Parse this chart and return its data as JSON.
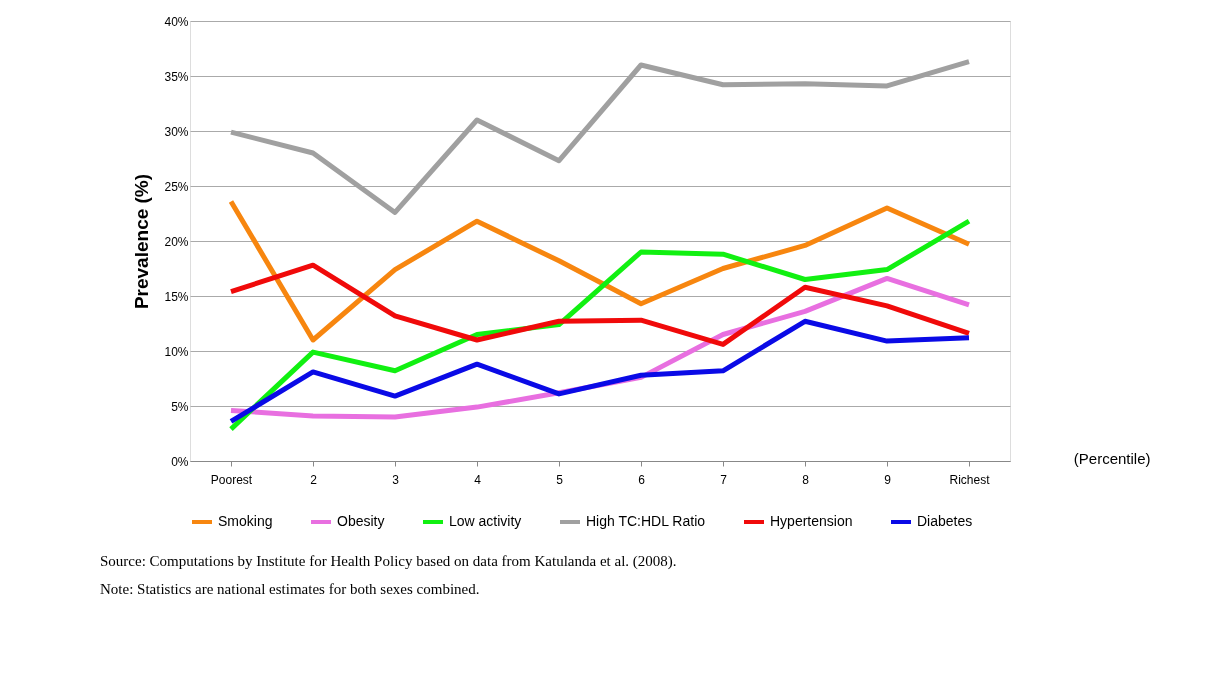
{
  "chart_data": {
    "type": "line",
    "ylabel": "Prevalence (%)",
    "xlabel": "(Percentile)",
    "categories": [
      "Poorest",
      "2",
      "3",
      "4",
      "5",
      "6",
      "7",
      "8",
      "9",
      "Richest"
    ],
    "series": [
      {
        "name": "Smoking",
        "color": "#f7860f",
        "values": [
          23.6,
          11.0,
          17.4,
          21.8,
          18.2,
          14.3,
          17.5,
          19.6,
          23.0,
          19.7
        ]
      },
      {
        "name": "Obesity",
        "color": "#e86fe0",
        "values": [
          4.6,
          4.1,
          4.0,
          4.9,
          6.2,
          7.6,
          11.5,
          13.6,
          16.6,
          14.2
        ]
      },
      {
        "name": "Low activity",
        "color": "#11f011",
        "values": [
          2.9,
          9.9,
          8.2,
          11.5,
          12.4,
          19.0,
          18.8,
          16.5,
          17.4,
          21.8
        ]
      },
      {
        "name": "High TC:HDL Ratio",
        "color": "#a0a0a0",
        "values": [
          29.9,
          28.0,
          22.6,
          31.0,
          27.3,
          36.0,
          34.2,
          34.3,
          34.1,
          36.3
        ]
      },
      {
        "name": "Hypertension",
        "color": "#f00a0a",
        "values": [
          15.4,
          17.8,
          13.2,
          11.0,
          12.7,
          12.8,
          10.6,
          15.8,
          14.1,
          11.6
        ]
      },
      {
        "name": "Diabetes",
        "color": "#0a0ae6",
        "values": [
          3.6,
          8.1,
          5.9,
          8.8,
          6.1,
          7.8,
          8.2,
          12.7,
          10.9,
          11.2
        ]
      }
    ],
    "ylim": [
      0,
      40
    ],
    "yticks": [
      {
        "value": 0,
        "label": "0%"
      },
      {
        "value": 5,
        "label": "5%"
      },
      {
        "value": 10,
        "label": "10%"
      },
      {
        "value": 15,
        "label": "15%"
      },
      {
        "value": 20,
        "label": "20%"
      },
      {
        "value": 25,
        "label": "25%"
      },
      {
        "value": 30,
        "label": "30%"
      },
      {
        "value": 35,
        "label": "35%"
      },
      {
        "value": 40,
        "label": "40%"
      }
    ],
    "grid": "y",
    "legend": "bottom",
    "marker": "none",
    "line_style": "solid",
    "annotations": [
      "Source: Computations by Institute for Health Policy based on data from Katulanda et al. (2008).",
      "Note: Statistics are national estimates for both sexes combined."
    ]
  }
}
